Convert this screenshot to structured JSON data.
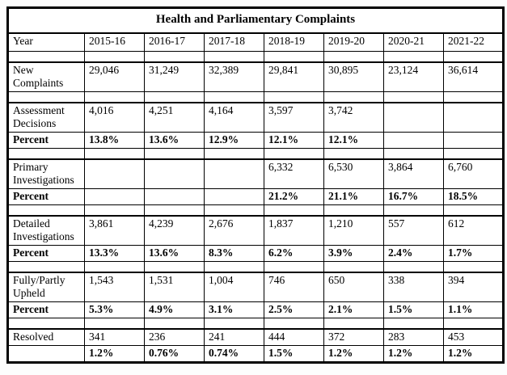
{
  "title": "Health and Parliamentary Complaints",
  "columns": [
    "Year",
    "2015-16",
    "2016-17",
    "2017-18",
    "2018-19",
    "2019-20",
    "2020-21",
    "2021-22"
  ],
  "rows": [
    {
      "kind": "header",
      "group_start": false,
      "label": "Year",
      "values": [
        "2015-16",
        "2016-17",
        "2017-18",
        "2018-19",
        "2019-20",
        "2020-21",
        "2021-22"
      ]
    },
    {
      "kind": "spacer"
    },
    {
      "kind": "data",
      "group_start": true,
      "label": "New Complaints",
      "values": [
        "29,046",
        "31,249",
        "32,389",
        "29,841",
        "30,895",
        "23,124",
        "36,614"
      ]
    },
    {
      "kind": "spacer"
    },
    {
      "kind": "data",
      "group_start": true,
      "label": "Assessment Decisions",
      "values": [
        "4,016",
        "4,251",
        "4,164",
        "3,597",
        "3,742",
        "",
        ""
      ]
    },
    {
      "kind": "percent",
      "group_start": false,
      "label": "Percent",
      "values": [
        "13.8%",
        "13.6%",
        "12.9%",
        "12.1%",
        "12.1%",
        "",
        ""
      ]
    },
    {
      "kind": "spacer"
    },
    {
      "kind": "data",
      "group_start": true,
      "label": "Primary Investigations",
      "values": [
        "",
        "",
        "",
        "6,332",
        "6,530",
        "3,864",
        "6,760"
      ]
    },
    {
      "kind": "percent",
      "group_start": false,
      "label": "Percent",
      "values": [
        "",
        "",
        "",
        "21.2%",
        "21.1%",
        "16.7%",
        "18.5%"
      ]
    },
    {
      "kind": "spacer"
    },
    {
      "kind": "data",
      "group_start": true,
      "label": "Detailed Investigations",
      "values": [
        "3,861",
        "4,239",
        "2,676",
        "1,837",
        "1,210",
        "557",
        "612"
      ]
    },
    {
      "kind": "percent",
      "group_start": false,
      "label": "Percent",
      "values": [
        "13.3%",
        "13.6%",
        "8.3%",
        "6.2%",
        "3.9%",
        "2.4%",
        "1.7%"
      ]
    },
    {
      "kind": "spacer"
    },
    {
      "kind": "data",
      "group_start": true,
      "label": "Fully/Partly Upheld",
      "values": [
        "1,543",
        "1,531",
        "1,004",
        "746",
        "650",
        "338",
        "394"
      ]
    },
    {
      "kind": "percent",
      "group_start": false,
      "label": "Percent",
      "values": [
        "5.3%",
        "4.9%",
        "3.1%",
        "2.5%",
        "2.1%",
        "1.5%",
        "1.1%"
      ]
    },
    {
      "kind": "spacer"
    },
    {
      "kind": "data",
      "group_start": true,
      "label": "Resolved",
      "values": [
        "341",
        "236",
        "241",
        "444",
        "372",
        "283",
        "453"
      ]
    },
    {
      "kind": "percent",
      "group_start": false,
      "label": "",
      "values": [
        "1.2%",
        "0.76%",
        "0.74%",
        "1.5%",
        "1.2%",
        "1.2%",
        "1.2%"
      ]
    }
  ]
}
